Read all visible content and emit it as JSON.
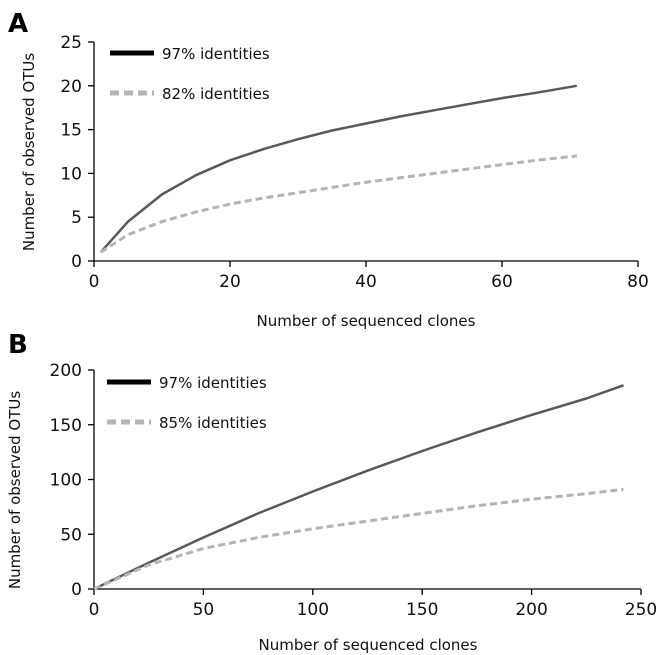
{
  "chart_data": [
    {
      "type": "line",
      "panel": "A",
      "xlabel": "Number of sequenced clones",
      "ylabel": "Number of observed OTUs",
      "xlim": [
        0,
        80
      ],
      "ylim": [
        0,
        25
      ],
      "xticks": [
        "0",
        "20",
        "40",
        "60",
        "80"
      ],
      "yticks": [
        "0",
        "5",
        "10",
        "15",
        "20",
        "25"
      ],
      "grid": false,
      "legend_position": "top-left",
      "series": [
        {
          "name": "97% identities",
          "style": "solid",
          "color": "#595959",
          "legend_color": "#000000",
          "points": [
            [
              1,
              1
            ],
            [
              5,
              4.5
            ],
            [
              10,
              7.6
            ],
            [
              15,
              9.8
            ],
            [
              20,
              11.5
            ],
            [
              25,
              12.8
            ],
            [
              30,
              13.9
            ],
            [
              35,
              14.9
            ],
            [
              40,
              15.7
            ],
            [
              45,
              16.5
            ],
            [
              50,
              17.2
            ],
            [
              55,
              17.9
            ],
            [
              60,
              18.6
            ],
            [
              65,
              19.2
            ],
            [
              71,
              20
            ]
          ]
        },
        {
          "name": "82% identities",
          "style": "dashed",
          "color": "#b5b5b5",
          "legend_color": "#b5b5b5",
          "points": [
            [
              1,
              1
            ],
            [
              5,
              3
            ],
            [
              10,
              4.5
            ],
            [
              15,
              5.6
            ],
            [
              20,
              6.5
            ],
            [
              25,
              7.2
            ],
            [
              30,
              7.8
            ],
            [
              35,
              8.4
            ],
            [
              40,
              9
            ],
            [
              45,
              9.5
            ],
            [
              50,
              10
            ],
            [
              55,
              10.5
            ],
            [
              60,
              11
            ],
            [
              65,
              11.5
            ],
            [
              71,
              12
            ]
          ]
        }
      ]
    },
    {
      "type": "line",
      "panel": "B",
      "xlabel": "Number of sequenced clones",
      "ylabel": "Number of observed OTUs",
      "xlim": [
        0,
        250
      ],
      "ylim": [
        0,
        200
      ],
      "xticks": [
        "0",
        "50",
        "100",
        "150",
        "200",
        "250"
      ],
      "yticks": [
        "0",
        "50",
        "100",
        "150",
        "200"
      ],
      "grid": false,
      "legend_position": "top-left",
      "series": [
        {
          "name": "97% identities",
          "style": "solid",
          "color": "#595959",
          "legend_color": "#000000",
          "points": [
            [
              0,
              0
            ],
            [
              25,
              24
            ],
            [
              50,
              47
            ],
            [
              75,
              69
            ],
            [
              100,
              89
            ],
            [
              125,
              108
            ],
            [
              150,
              126
            ],
            [
              175,
              143
            ],
            [
              200,
              159
            ],
            [
              225,
              174
            ],
            [
              242,
              186
            ]
          ]
        },
        {
          "name": "85% identities",
          "style": "dashed",
          "color": "#b5b5b5",
          "legend_color": "#b5b5b5",
          "points": [
            [
              0,
              0
            ],
            [
              25,
              22
            ],
            [
              50,
              37
            ],
            [
              75,
              47
            ],
            [
              100,
              55
            ],
            [
              125,
              62
            ],
            [
              150,
              69
            ],
            [
              175,
              76
            ],
            [
              200,
              82
            ],
            [
              225,
              87
            ],
            [
              242,
              91
            ]
          ]
        }
      ]
    }
  ]
}
